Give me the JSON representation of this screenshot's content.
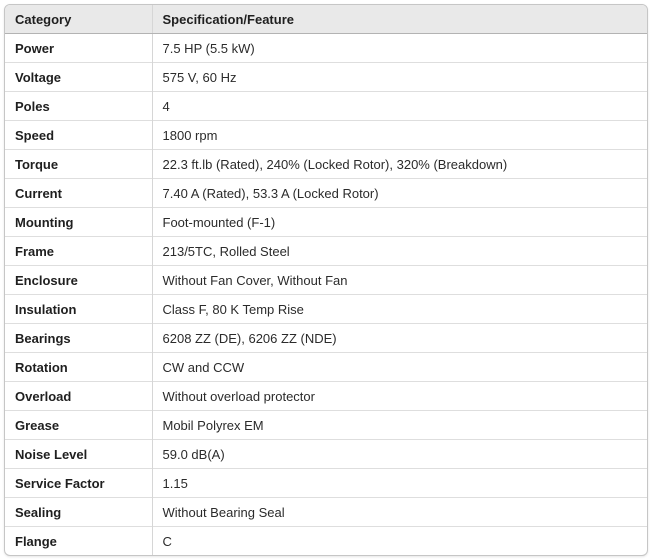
{
  "table": {
    "headers": [
      "Category",
      "Specification/Feature"
    ],
    "rows": [
      {
        "category": "Power",
        "spec": "7.5 HP (5.5 kW)"
      },
      {
        "category": "Voltage",
        "spec": "575 V, 60 Hz"
      },
      {
        "category": "Poles",
        "spec": "4"
      },
      {
        "category": "Speed",
        "spec": "1800 rpm"
      },
      {
        "category": "Torque",
        "spec": "22.3 ft.lb (Rated), 240% (Locked Rotor), 320% (Breakdown)"
      },
      {
        "category": "Current",
        "spec": "7.40 A (Rated), 53.3 A (Locked Rotor)"
      },
      {
        "category": "Mounting",
        "spec": "Foot-mounted (F-1)"
      },
      {
        "category": "Frame",
        "spec": "213/5TC, Rolled Steel"
      },
      {
        "category": "Enclosure",
        "spec": "Without Fan Cover, Without Fan"
      },
      {
        "category": "Insulation",
        "spec": "Class F, 80 K Temp Rise"
      },
      {
        "category": "Bearings",
        "spec": "6208 ZZ (DE), 6206 ZZ (NDE)"
      },
      {
        "category": "Rotation",
        "spec": "CW and CCW"
      },
      {
        "category": "Overload",
        "spec": "Without overload protector"
      },
      {
        "category": "Grease",
        "spec": "Mobil Polyrex EM"
      },
      {
        "category": "Noise Level",
        "spec": "59.0 dB(A)"
      },
      {
        "category": "Service Factor",
        "spec": "1.15"
      },
      {
        "category": "Sealing",
        "spec": "Without Bearing Seal"
      },
      {
        "category": "Flange",
        "spec": "C"
      }
    ],
    "colors": {
      "header_bg": "#e9e9e9",
      "outer_border": "#c6c6c6",
      "row_divider": "#dedede",
      "column_divider": "#d6d6d6",
      "header_divider": "#b3b3b3",
      "text": "#1f1f1f"
    }
  }
}
